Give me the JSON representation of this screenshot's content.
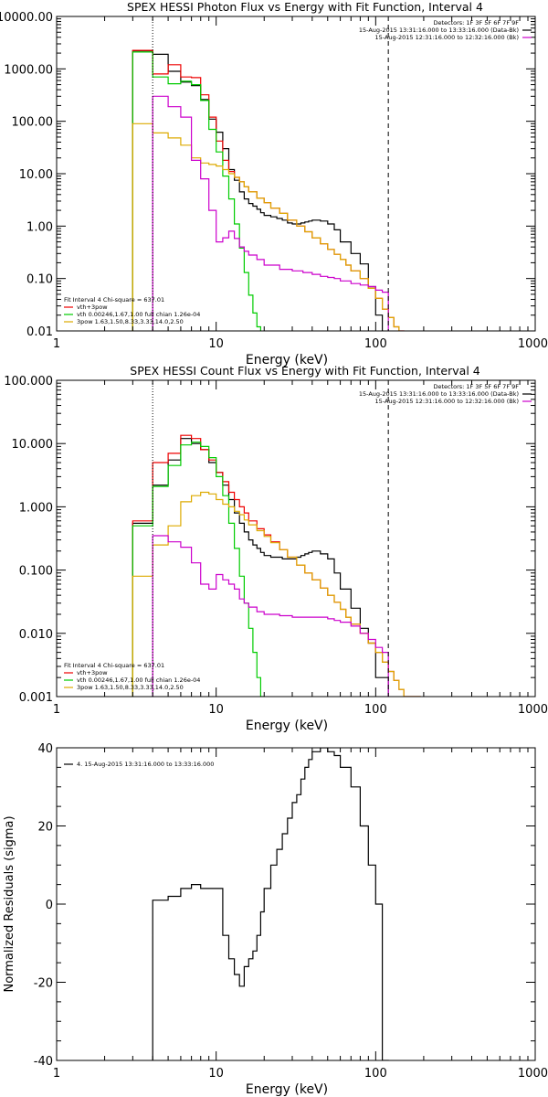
{
  "chart_data": [
    {
      "type": "line",
      "title": "SPEX HESSI Photon Flux vs Energy with Fit Function, Interval 4",
      "xlabel": "Energy (keV)",
      "ylabel": "",
      "xscale": "log",
      "yscale": "log",
      "xlim": [
        1,
        1000
      ],
      "ylim": [
        0.01,
        10000
      ],
      "x_ticks": [
        1,
        10,
        100,
        1000
      ],
      "x_tick_labels": [
        "1",
        "10",
        "100",
        "1000"
      ],
      "y_ticks": [
        0.01,
        0.1,
        1,
        10,
        100,
        1000,
        10000
      ],
      "y_tick_labels": [
        "0.01",
        "0.10",
        "1.00",
        "10.00",
        "100.00",
        "1000.00",
        "10000.00"
      ],
      "vlines": [
        {
          "x": 4,
          "style": "dotted"
        },
        {
          "x": 120,
          "style": "dashed"
        }
      ],
      "legend_top_right": [
        {
          "text": "Detectors: 1F 3F 5F 6F 7F 9F",
          "color": ""
        },
        {
          "text": "15-Aug-2015 13:31:16.000 to 13:33:16.000 (Data-Bk)",
          "color": "#000000"
        },
        {
          "text": "15-Aug-2015 12:31:16.000 to 12:32:16.000 (Bk)",
          "color": "#cc00cc"
        }
      ],
      "legend_bottom_left": [
        {
          "text": "Fit Interval 4   Chi-square = 637.01",
          "color": ""
        },
        {
          "text": "vth+3pow",
          "color": "#ee0000"
        },
        {
          "text": "vth 0.00246,1.67,1.00  full chian 1.26e-04",
          "color": "#00cc00"
        },
        {
          "text": "3pow 1.63,1.50,8.33,3.33,14.0,2.50",
          "color": "#ddaa00"
        }
      ],
      "series": [
        {
          "color": "#000000",
          "edges": [
            3,
            4,
            5,
            6,
            7,
            8,
            9,
            10,
            11,
            12,
            13,
            14,
            15,
            16,
            17,
            18,
            19,
            20,
            22,
            24,
            26,
            28,
            30,
            32,
            34,
            36,
            38,
            40,
            45,
            50,
            55,
            60,
            70,
            80,
            90,
            100,
            110,
            120
          ],
          "values": [
            2200,
            1900,
            900,
            560,
            480,
            260,
            110,
            62,
            30,
            12,
            7.5,
            4.5,
            3.3,
            2.7,
            2.4,
            2.1,
            1.8,
            1.6,
            1.5,
            1.4,
            1.3,
            1.15,
            1.1,
            1.1,
            1.15,
            1.2,
            1.25,
            1.3,
            1.25,
            1.1,
            0.85,
            0.5,
            0.3,
            0.19,
            0.07,
            0.02,
            0.008
          ]
        },
        {
          "color": "#ee0000",
          "edges": [
            3,
            4,
            5,
            6,
            7,
            8,
            9,
            10,
            11,
            12,
            13,
            14,
            15,
            16,
            18,
            20,
            22,
            25,
            28,
            32,
            36,
            40,
            45,
            50,
            55,
            60,
            65,
            70,
            80,
            90,
            100,
            110,
            120,
            130,
            140,
            150
          ],
          "values": [
            2250,
            800,
            1200,
            700,
            680,
            320,
            120,
            42,
            18,
            11,
            8.5,
            7,
            5.6,
            4.5,
            3.4,
            2.8,
            2.2,
            1.75,
            1.3,
            1.0,
            0.78,
            0.6,
            0.46,
            0.36,
            0.29,
            0.23,
            0.18,
            0.14,
            0.1,
            0.065,
            0.042,
            0.026,
            0.018,
            0.012,
            0.01
          ]
        },
        {
          "color": "#00cc00",
          "edges": [
            3,
            4,
            5,
            6,
            7,
            8,
            9,
            10,
            11,
            12,
            13,
            14,
            15,
            16,
            17,
            18,
            19,
            20
          ],
          "values": [
            2100,
            700,
            520,
            580,
            500,
            250,
            70,
            26,
            9,
            3.3,
            1.1,
            0.38,
            0.13,
            0.048,
            0.022,
            0.012,
            0.008
          ]
        },
        {
          "color": "#ddaa00",
          "edges": [
            3,
            4,
            5,
            6,
            7,
            8,
            9,
            10,
            11,
            12,
            13,
            14,
            15,
            16,
            18,
            20,
            22,
            25,
            28,
            32,
            36,
            40,
            45,
            50,
            55,
            60,
            65,
            70,
            80,
            90,
            100,
            110,
            120,
            130,
            140,
            150
          ],
          "values": [
            90,
            60,
            48,
            35,
            20,
            16,
            15,
            14,
            12,
            10,
            8.5,
            7,
            5.6,
            4.5,
            3.4,
            2.8,
            2.2,
            1.75,
            1.3,
            1.0,
            0.78,
            0.6,
            0.46,
            0.36,
            0.29,
            0.23,
            0.18,
            0.14,
            0.1,
            0.065,
            0.042,
            0.026,
            0.018,
            0.012,
            0.008
          ]
        },
        {
          "color": "#cc00cc",
          "edges": [
            4,
            5,
            6,
            7,
            8,
            9,
            10,
            11,
            12,
            13,
            14,
            15,
            16,
            18,
            20,
            25,
            30,
            35,
            40,
            45,
            50,
            55,
            60,
            70,
            80,
            90,
            100,
            110,
            120
          ],
          "values": [
            300,
            190,
            120,
            18,
            8,
            2,
            0.5,
            0.6,
            0.8,
            0.58,
            0.4,
            0.33,
            0.28,
            0.23,
            0.18,
            0.15,
            0.14,
            0.13,
            0.12,
            0.11,
            0.105,
            0.1,
            0.09,
            0.08,
            0.075,
            0.07,
            0.06,
            0.055
          ]
        }
      ]
    },
    {
      "type": "line",
      "title": "SPEX HESSI Count Flux vs Energy with Fit Function, Interval 4",
      "xlabel": "Energy (keV)",
      "ylabel": "",
      "xscale": "log",
      "yscale": "log",
      "xlim": [
        1,
        1000
      ],
      "ylim": [
        0.001,
        100
      ],
      "x_ticks": [
        1,
        10,
        100,
        1000
      ],
      "x_tick_labels": [
        "1",
        "10",
        "100",
        "1000"
      ],
      "y_ticks": [
        0.001,
        0.01,
        0.1,
        1,
        10,
        100
      ],
      "y_tick_labels": [
        "0.001",
        "0.010",
        "0.100",
        "1.000",
        "10.000",
        "100.000"
      ],
      "vlines": [
        {
          "x": 4,
          "style": "dotted"
        },
        {
          "x": 120,
          "style": "dashed"
        }
      ],
      "legend_top_right": [
        {
          "text": "Detectors: 1F 3F 5F 6F 7F 9F",
          "color": ""
        },
        {
          "text": "15-Aug-2015 13:31:16.000 to 13:33:16.000 (Data-Bk)",
          "color": "#000000"
        },
        {
          "text": "15-Aug-2015 12:31:16.000 to 12:32:16.000 (Bk)",
          "color": "#cc00cc"
        }
      ],
      "legend_bottom_left": [
        {
          "text": "Fit Interval 4   Chi-square = 637.01",
          "color": ""
        },
        {
          "text": "vth+3pow",
          "color": "#ee0000"
        },
        {
          "text": "vth 0.00246,1.67,1.00  full chian 1.26e-04",
          "color": "#00cc00"
        },
        {
          "text": "3pow 1.63,1.50,8.33,3.33,14.0,2.50",
          "color": "#ddaa00"
        }
      ],
      "series": [
        {
          "color": "#000000",
          "edges": [
            3,
            4,
            5,
            6,
            7,
            8,
            9,
            10,
            11,
            12,
            13,
            14,
            15,
            16,
            17,
            18,
            19,
            20,
            22,
            24,
            26,
            28,
            30,
            32,
            34,
            36,
            38,
            40,
            45,
            50,
            55,
            60,
            70,
            80,
            90,
            100,
            110,
            120
          ],
          "values": [
            0.55,
            2.2,
            5.5,
            12,
            10,
            8,
            5,
            3.5,
            2.2,
            1.3,
            0.8,
            0.55,
            0.4,
            0.3,
            0.25,
            0.22,
            0.19,
            0.17,
            0.16,
            0.16,
            0.15,
            0.15,
            0.15,
            0.16,
            0.17,
            0.18,
            0.19,
            0.2,
            0.18,
            0.15,
            0.09,
            0.05,
            0.025,
            0.012,
            0.007,
            0.002,
            0.002
          ]
        },
        {
          "color": "#ee0000",
          "edges": [
            3,
            4,
            5,
            6,
            7,
            8,
            9,
            10,
            11,
            12,
            13,
            14,
            15,
            16,
            18,
            20,
            22,
            25,
            28,
            32,
            36,
            40,
            45,
            50,
            55,
            60,
            65,
            70,
            80,
            90,
            100,
            110,
            120,
            130,
            140,
            150,
            160,
            170,
            180,
            190
          ],
          "values": [
            0.6,
            5,
            7,
            13.5,
            12,
            8,
            5.5,
            3.5,
            2.5,
            1.7,
            1.3,
            1,
            0.8,
            0.6,
            0.45,
            0.36,
            0.28,
            0.21,
            0.16,
            0.12,
            0.09,
            0.07,
            0.052,
            0.04,
            0.031,
            0.024,
            0.018,
            0.014,
            0.01,
            0.007,
            0.005,
            0.0035,
            0.0025,
            0.0018,
            0.0013,
            0.001,
            0.001,
            0.001,
            0.001
          ]
        },
        {
          "color": "#00cc00",
          "edges": [
            3,
            4,
            5,
            6,
            7,
            8,
            9,
            10,
            11,
            12,
            13,
            14,
            15,
            16,
            17,
            18,
            19,
            20
          ],
          "values": [
            0.5,
            2.1,
            4.5,
            9.5,
            10.5,
            9,
            6,
            3,
            1.5,
            0.55,
            0.22,
            0.08,
            0.03,
            0.012,
            0.005,
            0.002,
            0.001
          ]
        },
        {
          "color": "#ddaa00",
          "edges": [
            3,
            4,
            5,
            6,
            7,
            8,
            9,
            10,
            11,
            12,
            13,
            14,
            15,
            16,
            18,
            20,
            22,
            25,
            28,
            32,
            36,
            40,
            45,
            50,
            55,
            60,
            65,
            70,
            80,
            90,
            100,
            110,
            120,
            130,
            140,
            150,
            160,
            170,
            180,
            190
          ],
          "values": [
            0.08,
            0.25,
            0.5,
            1.2,
            1.5,
            1.7,
            1.6,
            1.3,
            1.1,
            1.0,
            0.85,
            0.75,
            0.62,
            0.52,
            0.42,
            0.34,
            0.27,
            0.21,
            0.16,
            0.12,
            0.09,
            0.07,
            0.052,
            0.04,
            0.031,
            0.024,
            0.018,
            0.014,
            0.01,
            0.007,
            0.005,
            0.0035,
            0.0025,
            0.0018,
            0.0013,
            0.001,
            0.001,
            0.001,
            0.001
          ]
        },
        {
          "color": "#cc00cc",
          "edges": [
            4,
            5,
            6,
            7,
            8,
            9,
            10,
            11,
            12,
            13,
            14,
            15,
            16,
            18,
            20,
            25,
            30,
            35,
            40,
            45,
            50,
            55,
            60,
            70,
            80,
            90,
            100,
            110,
            120
          ],
          "values": [
            0.35,
            0.28,
            0.23,
            0.13,
            0.06,
            0.05,
            0.085,
            0.07,
            0.06,
            0.05,
            0.035,
            0.03,
            0.026,
            0.022,
            0.02,
            0.019,
            0.018,
            0.018,
            0.018,
            0.018,
            0.017,
            0.016,
            0.015,
            0.013,
            0.01,
            0.008,
            0.006,
            0.005
          ]
        }
      ]
    },
    {
      "type": "line",
      "title": "",
      "xlabel": "Energy (keV)",
      "ylabel": "Normalized Residuals (sigma)",
      "xscale": "log",
      "yscale": "linear",
      "xlim": [
        1,
        1000
      ],
      "ylim": [
        -40,
        40
      ],
      "x_ticks": [
        1,
        10,
        100,
        1000
      ],
      "x_tick_labels": [
        "1",
        "10",
        "100",
        "1000"
      ],
      "y_ticks": [
        -40,
        -20,
        0,
        20,
        40
      ],
      "y_tick_labels": [
        "-40",
        "-20",
        "0",
        "20",
        "40"
      ],
      "vlines": [],
      "legend_top_right": [],
      "legend_bottom_left": [],
      "legend_top_left": [
        {
          "text": "4. 15-Aug-2015 13:31:16.000 to 13:33:16.000",
          "color": "#000000"
        }
      ],
      "series": [
        {
          "color": "#000000",
          "edges": [
            4,
            5,
            6,
            7,
            8,
            9,
            10,
            11,
            12,
            13,
            14,
            15,
            16,
            17,
            18,
            19,
            20,
            22,
            24,
            26,
            28,
            30,
            32,
            34,
            36,
            38,
            40,
            45,
            50,
            55,
            60,
            70,
            80,
            90,
            100,
            110,
            120
          ],
          "values": [
            1,
            2,
            4,
            5,
            4,
            4,
            4,
            -8,
            -14,
            -18,
            -21,
            -16,
            -14,
            -12,
            -8,
            -2,
            4,
            10,
            14,
            18,
            22,
            26,
            28,
            32,
            35,
            37,
            39,
            40,
            39,
            38,
            35,
            30,
            20,
            10,
            0,
            -40
          ]
        }
      ]
    }
  ]
}
